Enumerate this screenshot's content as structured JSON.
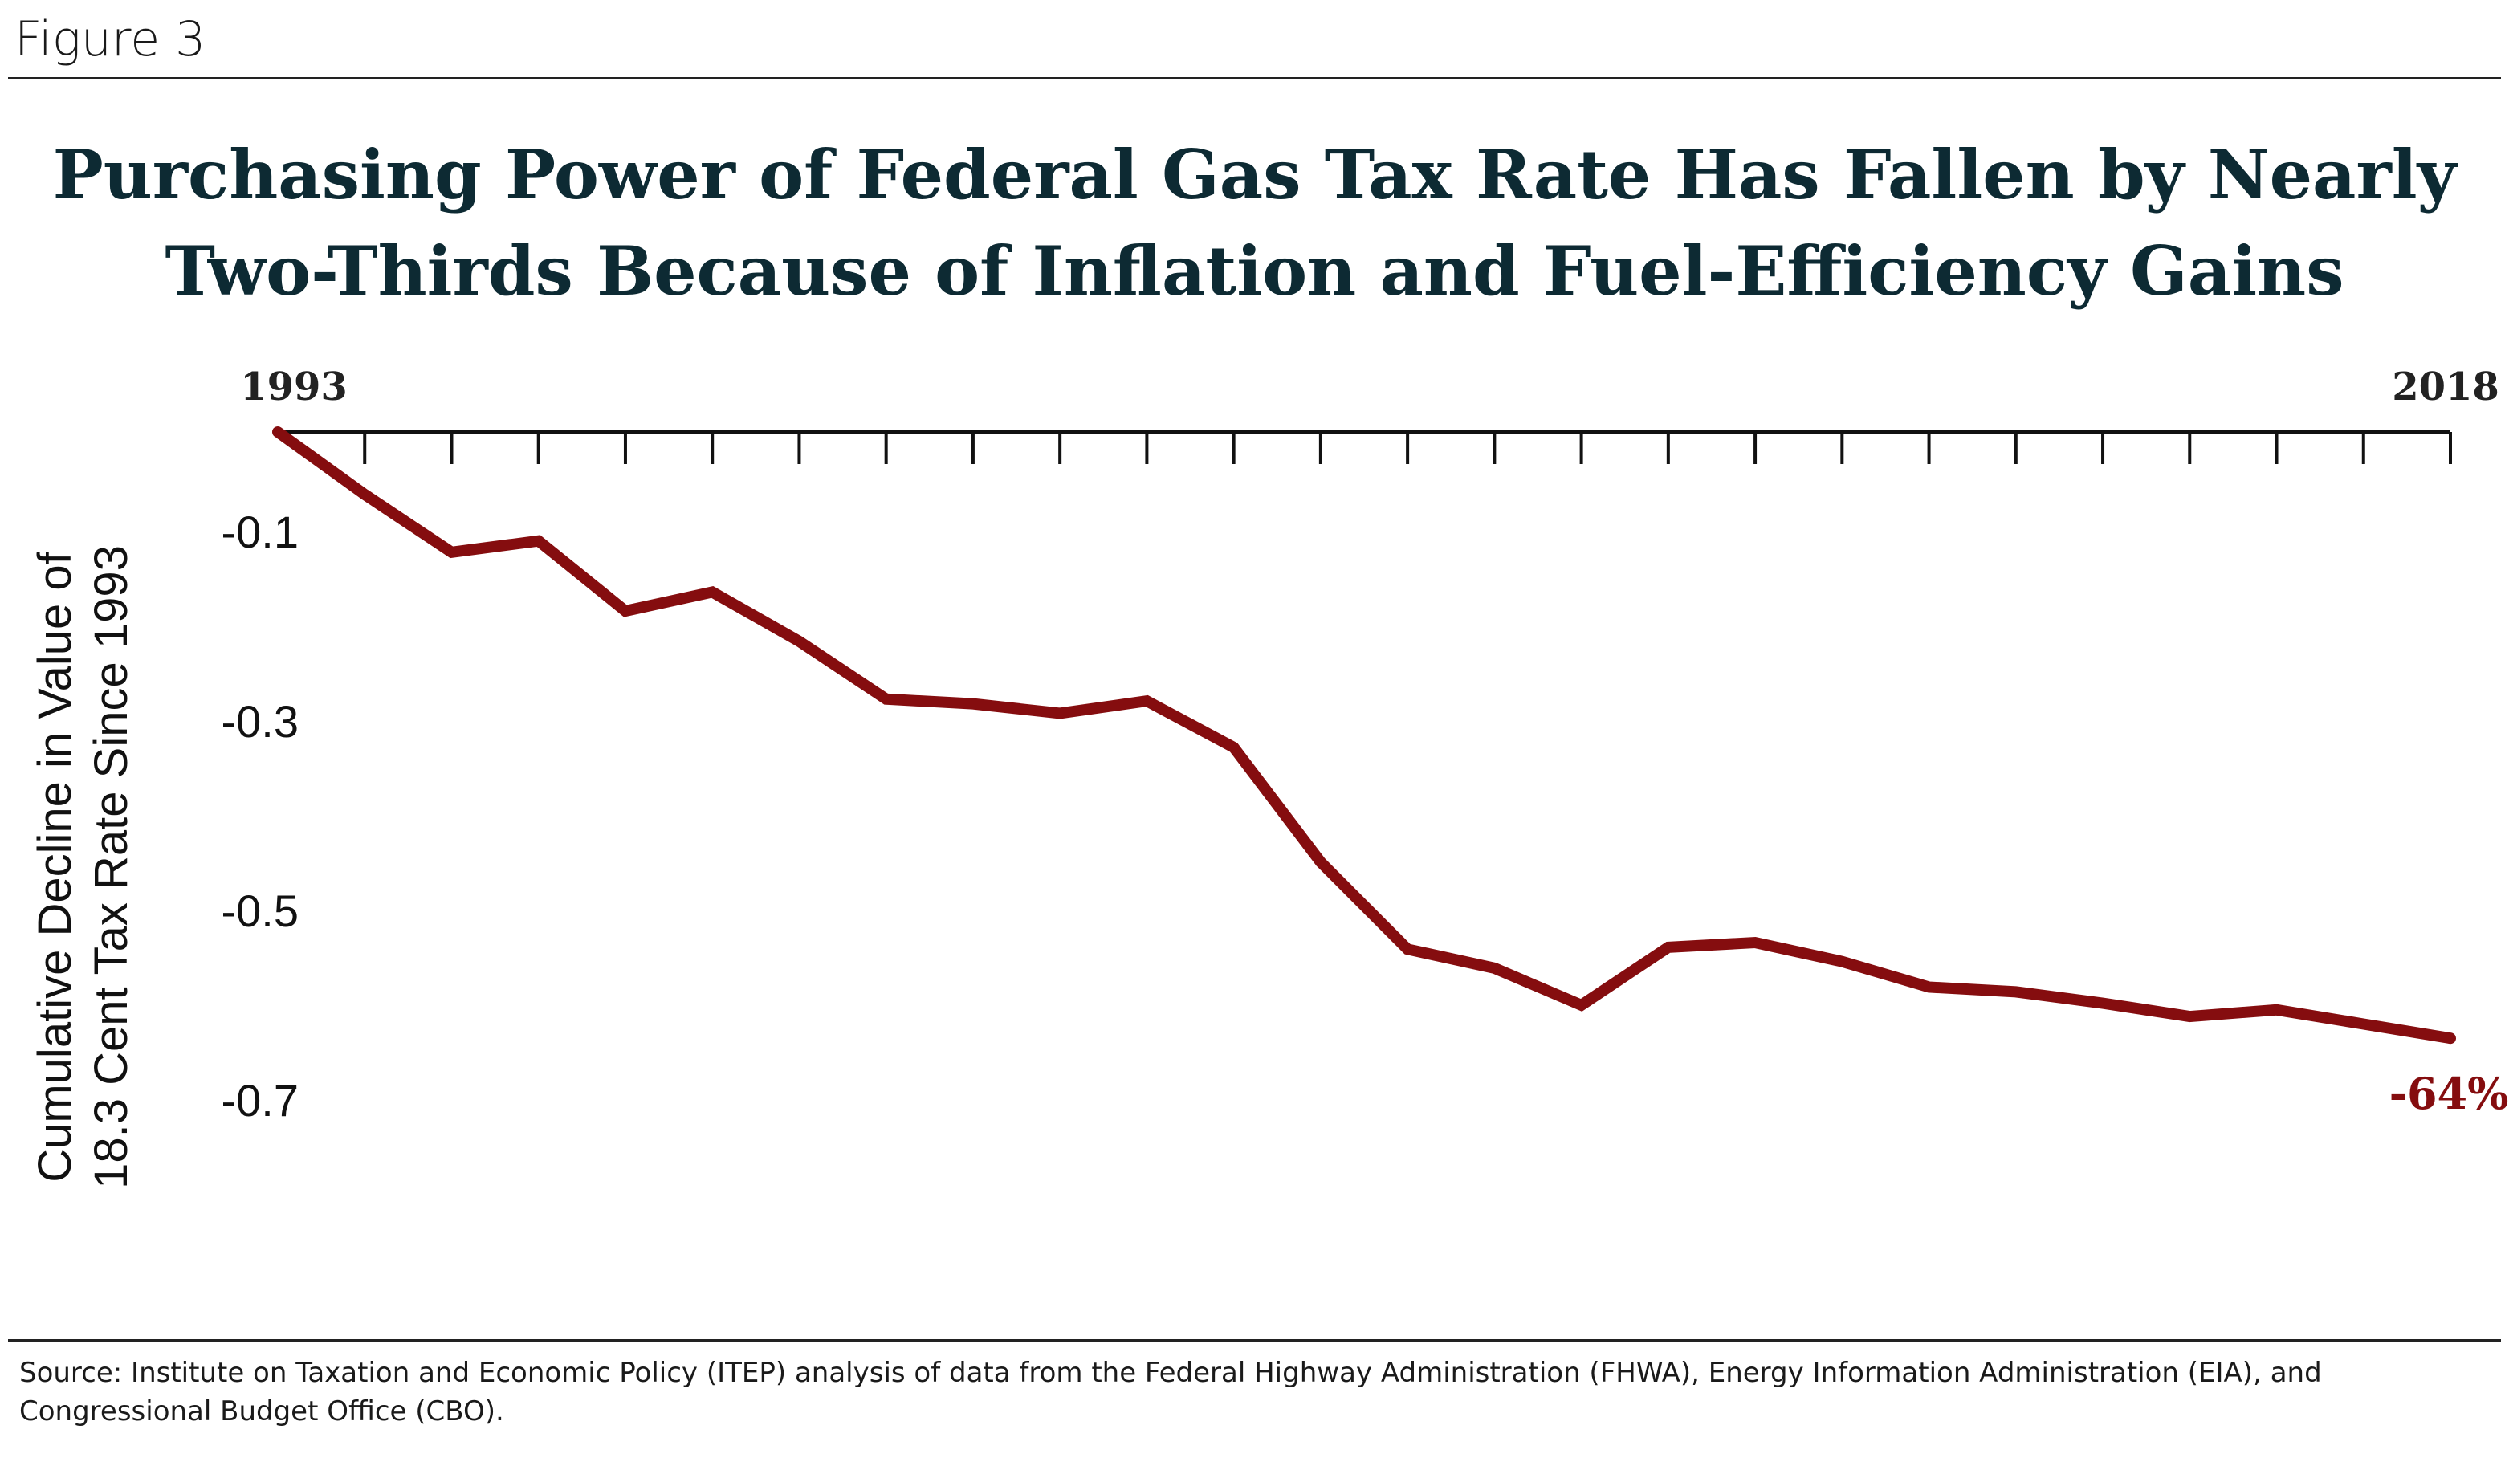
{
  "figure_label": "Figure 3",
  "source": "Source: Institute on Taxation and Economic Policy (ITEP) analysis of data from the Federal Highway Administration (FHWA), Energy Information Administration (EIA), and Congressional Budget Office (CBO).",
  "chart_data": {
    "type": "line",
    "title": "Purchasing Power of Federal Gas Tax Rate Has Fallen by Nearly Two-Thirds Because of Inflation and Fuel-Efficiency Gains",
    "title_lines": [
      "Purchasing Power of Federal Gas Tax Rate Has Fallen by Nearly",
      "Two-Thirds Because of Inflation and Fuel-Efficiency Gains"
    ],
    "ylabel_lines": [
      "Cumulative Decline in Value of",
      "18.3 Cent Tax Rate Since 1993"
    ],
    "xlabel": "",
    "x_tick_labels": [
      "1993",
      "2018"
    ],
    "y_ticks": [
      -0.1,
      -0.3,
      -0.5,
      -0.7
    ],
    "y_tick_labels": [
      "-0.1",
      "-0.3",
      "-0.5",
      "-0.7"
    ],
    "xlim": [
      1993,
      2018
    ],
    "ylim": [
      -0.85,
      0
    ],
    "x_axis_position": "top",
    "grid": false,
    "series": [
      {
        "color": "#850d0f",
        "x": [
          1993,
          1994,
          1995,
          1996,
          1997,
          1998,
          1999,
          2000,
          2001,
          2002,
          2003,
          2004,
          2005,
          2006,
          2007,
          2008,
          2009,
          2010,
          2011,
          2012,
          2013,
          2014,
          2015,
          2016,
          2017,
          2018
        ],
        "y": [
          0,
          -0.066,
          -0.127,
          -0.115,
          -0.189,
          -0.169,
          -0.221,
          -0.282,
          -0.287,
          -0.297,
          -0.284,
          -0.333,
          -0.454,
          -0.546,
          -0.566,
          -0.605,
          -0.544,
          -0.539,
          -0.559,
          -0.586,
          -0.591,
          -0.603,
          -0.617,
          -0.61,
          -0.625,
          -0.64
        ]
      }
    ],
    "annotations": [
      {
        "text": "-64%",
        "x": 2018,
        "y": -0.64,
        "color": "#850d0f"
      }
    ],
    "colors": {
      "title": "#0d2a33",
      "axis": "#111111",
      "line": "#850d0f"
    }
  }
}
